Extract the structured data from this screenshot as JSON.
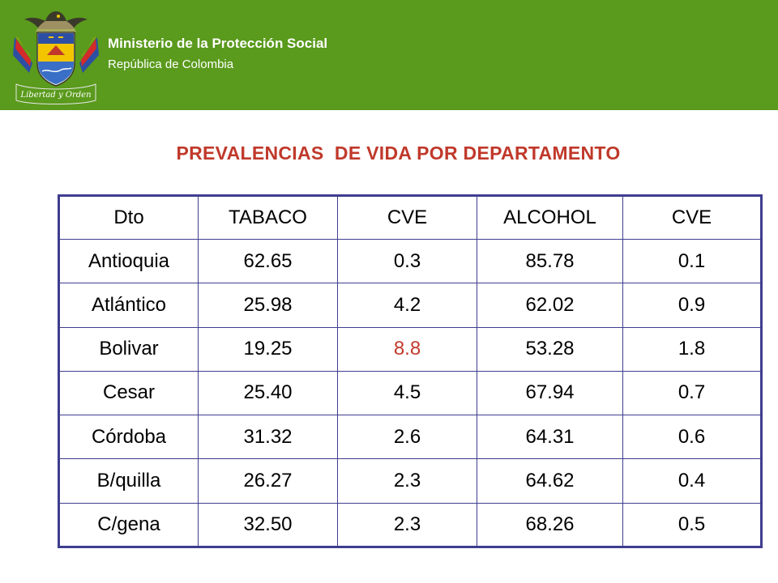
{
  "header": {
    "ministry": "Ministerio de la Protección Social",
    "republic": "República de Colombia",
    "emblem_motto": "Libertad y Orden",
    "background_color": "#5a9a1c"
  },
  "title": "PREVALENCIAS  DE VIDA POR DEPARTAMENTO",
  "table": {
    "headers": [
      "Dto",
      "TABACO",
      "CVE",
      "ALCOHOL",
      "CVE"
    ],
    "rows": [
      [
        "Antioquia",
        "62.65",
        "0.3",
        "85.78",
        "0.1"
      ],
      [
        "Atlántico",
        "25.98",
        "4.2",
        "62.02",
        "0.9"
      ],
      [
        "Bolivar",
        "19.25",
        "8.8",
        "53.28",
        "1.8"
      ],
      [
        "Cesar",
        "25.40",
        "4.5",
        "67.94",
        "0.7"
      ],
      [
        "Córdoba",
        "31.32",
        "2.6",
        "64.31",
        "0.6"
      ],
      [
        "B/quilla",
        "26.27",
        "2.3",
        "64.62",
        "0.4"
      ],
      [
        "C/gena",
        "32.50",
        "2.3",
        "68.26",
        "0.5"
      ]
    ],
    "highlight_color": "#c0392b",
    "border_color": "#3f3d8f"
  }
}
